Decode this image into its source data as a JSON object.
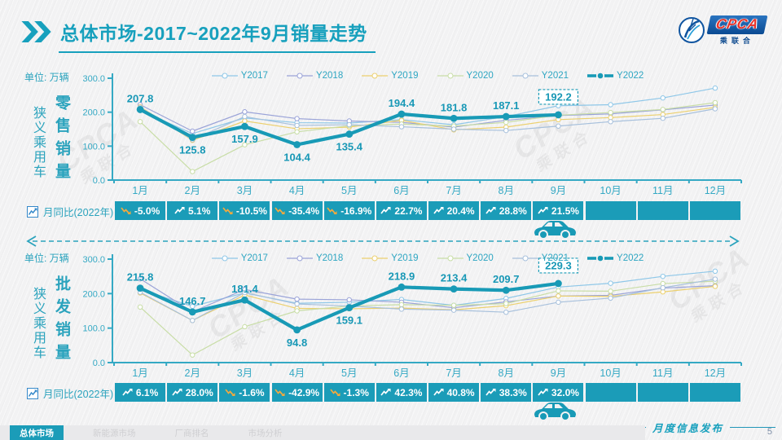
{
  "header": {
    "title_primary": "总体市场",
    "title_suffix": "-2017~2022年9月销量走势",
    "logo_text": "CPCA",
    "logo_subtext": "乘联合"
  },
  "watermark": {
    "line1": "CPCA",
    "line2": "乘联合"
  },
  "footer": {
    "tabs": [
      {
        "label": "总体市场",
        "active": true
      },
      {
        "label": "新能源市场",
        "active": false
      },
      {
        "label": "厂商排名",
        "active": false
      },
      {
        "label": "市场分析",
        "active": false
      }
    ],
    "release_label": "月度信息发布",
    "page_number": "5"
  },
  "colors": {
    "accent": "#17a0bd",
    "cell": "#1b9cb8",
    "axis_text": "#35a9c4",
    "data_label": "#1898b6",
    "negative_arrow": "#f4a93d"
  },
  "chart_data": [
    {
      "type": "line",
      "title": "狭义乘用车零售销量走势",
      "group_label": "狭义乘用车",
      "metric_label": "零售销量",
      "unit_label": "单位: 万辆",
      "categories": [
        "1月",
        "2月",
        "3月",
        "4月",
        "5月",
        "6月",
        "7月",
        "8月",
        "9月",
        "10月",
        "11月",
        "12月"
      ],
      "ylim": [
        0,
        300
      ],
      "ytick_labels": [
        "0.0",
        "100.0",
        "200.0",
        "300.0"
      ],
      "legend_position": "top-center",
      "series": [
        {
          "name": "Y2017",
          "color": "#8ec7e8",
          "values": [
            205,
            137,
            183,
            169,
            168,
            178,
            163,
            187,
            219,
            222,
            242,
            271
          ]
        },
        {
          "name": "Y2018",
          "color": "#9aa3d8",
          "values": [
            222,
            144,
            201,
            181,
            174,
            170,
            156,
            176,
            190,
            195,
            207,
            221
          ]
        },
        {
          "name": "Y2019",
          "color": "#ecd06e",
          "values": [
            216,
            117,
            174,
            151,
            156,
            176,
            148,
            156,
            178,
            184,
            193,
            214
          ]
        },
        {
          "name": "Y2020",
          "color": "#c8dda6",
          "values": [
            172,
            25,
            104,
            142,
            160,
            165,
            159,
            170,
            191,
            199,
            208,
            228
          ]
        },
        {
          "name": "Y2021",
          "color": "#a7c0dc",
          "values": [
            214,
            119,
            187,
            161,
            163,
            157,
            150,
            146,
            159,
            172,
            182,
            210
          ]
        },
        {
          "name": "Y2022",
          "color": "#189ab6",
          "emphasis": true,
          "values": [
            207.8,
            125.8,
            157.9,
            104.4,
            135.4,
            194.4,
            181.8,
            187.1,
            192.2
          ],
          "data_labels": [
            "207.8",
            "125.8",
            "157.9",
            "104.4",
            "135.4",
            "194.4",
            "181.8",
            "187.1",
            "192.2"
          ],
          "label_sides": [
            "up",
            "down",
            "down",
            "down",
            "down",
            "up",
            "up",
            "up",
            "up"
          ],
          "boxed_index": 8
        }
      ],
      "yoy": {
        "label": "月同比(2022年)",
        "values": [
          -5.0,
          5.1,
          -10.5,
          -35.4,
          -16.9,
          22.7,
          20.4,
          28.8,
          21.5,
          null,
          null,
          null
        ]
      }
    },
    {
      "type": "line",
      "title": "狭义乘用车批发销量走势",
      "group_label": "狭义乘用车",
      "metric_label": "批发销量",
      "unit_label": "单位: 万辆",
      "categories": [
        "1月",
        "2月",
        "3月",
        "4月",
        "5月",
        "6月",
        "7月",
        "8月",
        "9月",
        "10月",
        "11月",
        "12月"
      ],
      "ylim": [
        0,
        300
      ],
      "ytick_labels": [
        "0.0",
        "100.0",
        "200.0",
        "300.0"
      ],
      "legend_position": "top-center",
      "series": [
        {
          "name": "Y2017",
          "color": "#8ec7e8",
          "values": [
            212,
            163,
            202,
            172,
            175,
            183,
            166,
            186,
            219,
            230,
            250,
            265
          ]
        },
        {
          "name": "Y2018",
          "color": "#9aa3d8",
          "values": [
            243,
            147,
            212,
            184,
            182,
            175,
            159,
            176,
            193,
            195,
            216,
            223
          ]
        },
        {
          "name": "Y2019",
          "color": "#ecd06e",
          "values": [
            202,
            122,
            196,
            157,
            156,
            158,
            153,
            165,
            193,
            192,
            205,
            221
          ]
        },
        {
          "name": "Y2020",
          "color": "#c8dda6",
          "values": [
            161,
            22,
            104,
            150,
            164,
            168,
            166,
            171,
            208,
            207,
            229,
            236
          ]
        },
        {
          "name": "Y2021",
          "color": "#a7c0dc",
          "values": [
            204,
            122,
            203,
            170,
            164,
            155,
            152,
            146,
            175,
            187,
            217,
            242
          ]
        },
        {
          "name": "Y2022",
          "color": "#189ab6",
          "emphasis": true,
          "values": [
            215.8,
            146.7,
            181.4,
            94.8,
            159.1,
            218.9,
            213.4,
            209.7,
            229.3
          ],
          "data_labels": [
            "215.8",
            "146.7",
            "181.4",
            "94.8",
            "159.1",
            "218.9",
            "213.4",
            "209.7",
            "229.3"
          ],
          "label_sides": [
            "up",
            "up",
            "up",
            "down",
            "down",
            "up",
            "up",
            "up",
            "up"
          ],
          "boxed_index": 8
        }
      ],
      "yoy": {
        "label": "月同比(2022年)",
        "values": [
          6.1,
          28.0,
          -1.6,
          -42.9,
          -1.3,
          42.3,
          40.8,
          38.3,
          32.0,
          null,
          null,
          null
        ]
      }
    }
  ]
}
